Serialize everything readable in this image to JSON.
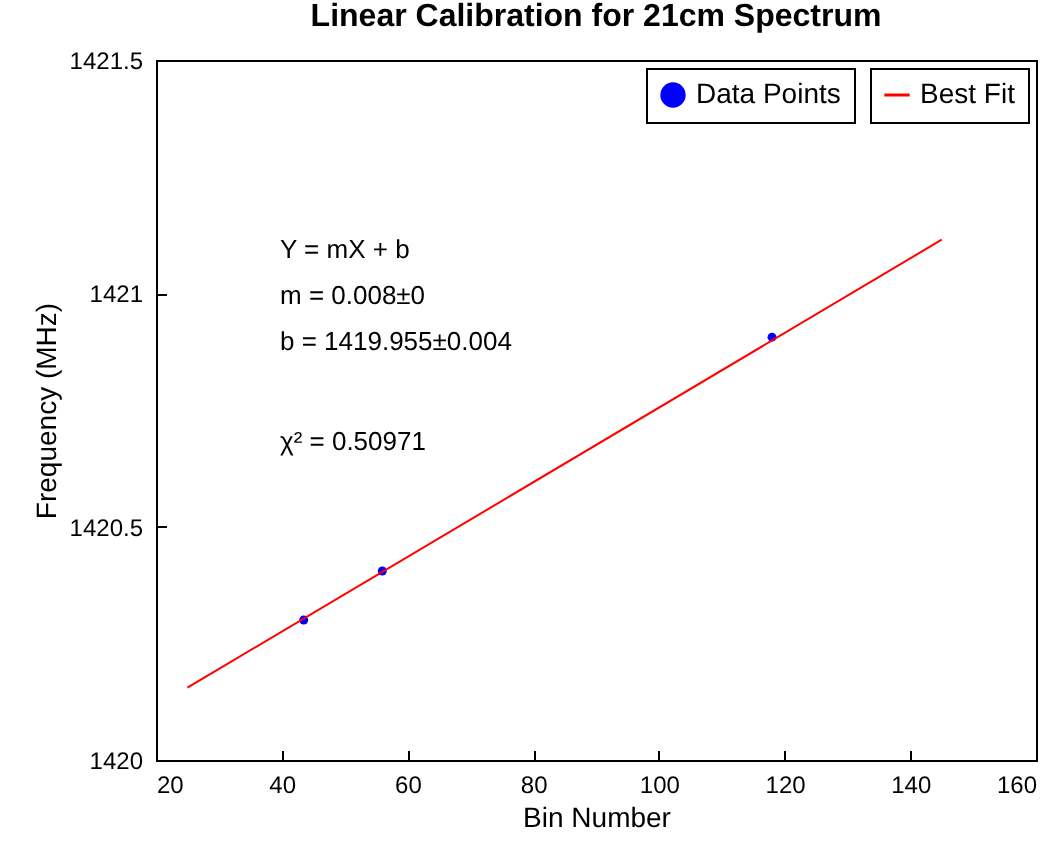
{
  "chart_data": {
    "type": "scatter",
    "title": "Linear Calibration for 21cm Spectrum",
    "xlabel": "Bin Number",
    "ylabel": "Frequency (MHz)",
    "annotations": [
      "Y = mX + b",
      "m = 0.008±0",
      "b = 1419.955±0.004",
      "χ² = 0.50971"
    ],
    "series": [
      {
        "name": "Data Points",
        "marker": "circle",
        "color": "#0000ff",
        "x": [
          43.5,
          56,
          118
        ],
        "values": [
          1420.3,
          1420.405,
          1420.906
        ]
      },
      {
        "name": "Best Fit",
        "type": "line",
        "color": "#ff0000",
        "x": [
          25,
          145
        ],
        "values": [
          1420.155,
          1421.115
        ]
      }
    ],
    "xlim": [
      20,
      160
    ],
    "xticks": [
      20,
      40,
      60,
      80,
      100,
      120,
      140,
      160
    ],
    "ylim": [
      1420,
      1421.5
    ],
    "yticks": [
      1420,
      1420.5,
      1421,
      1421.5
    ],
    "grid": false,
    "legend": "top right",
    "line_style": "solid"
  }
}
